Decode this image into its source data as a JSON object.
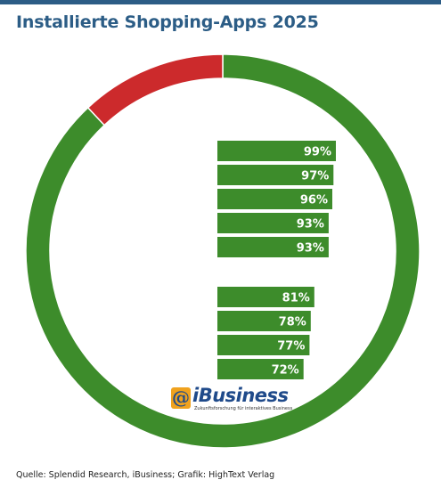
{
  "title": "Installierte Shopping-Apps 2025",
  "source": "Quelle: Splendid Research, iBusiness; Grafik: HighText Verlag",
  "logo": {
    "badge": "@",
    "name": "iBusiness",
    "tagline": "Zukunftsforschung für interaktives Business"
  },
  "colors": {
    "title": "#2c5d86",
    "ring_main": "#3d8c2b",
    "ring_highlight": "#cc2a2c",
    "bar": "#3d8c2b",
    "bar_text": "#ffffff"
  },
  "chart_data": [
    {
      "type": "pie",
      "slices": [
        {
          "value": 88,
          "color": "#3d8c2b"
        },
        {
          "value": 12,
          "color": "#cc2a2c"
        }
      ]
    },
    {
      "type": "bar",
      "orientation": "horizontal",
      "groups": [
        {
          "values": [
            99,
            97,
            96,
            93,
            93
          ],
          "labels": [
            "99%",
            "97%",
            "96%",
            "93%",
            "93%"
          ]
        },
        {
          "values": [
            81,
            78,
            77,
            72
          ],
          "labels": [
            "81%",
            "78%",
            "77%",
            "72%"
          ]
        }
      ]
    }
  ]
}
